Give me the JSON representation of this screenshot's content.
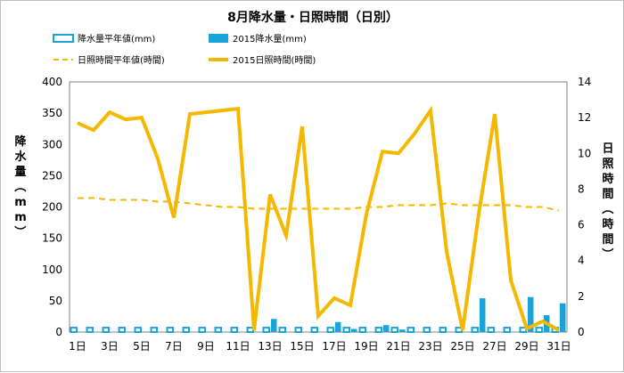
{
  "chart_data": {
    "type": "bar",
    "title": "8月降水量・日照時間（日別）",
    "categories": [
      "1日",
      "2日",
      "3日",
      "4日",
      "5日",
      "6日",
      "7日",
      "8日",
      "9日",
      "10日",
      "11日",
      "12日",
      "13日",
      "14日",
      "15日",
      "16日",
      "17日",
      "18日",
      "19日",
      "20日",
      "21日",
      "22日",
      "23日",
      "24日",
      "25日",
      "26日",
      "27日",
      "28日",
      "29日",
      "30日",
      "31日"
    ],
    "x_tick_labels": [
      "1日",
      "3日",
      "5日",
      "7日",
      "9日",
      "11日",
      "13日",
      "15日",
      "17日",
      "19日",
      "21日",
      "23日",
      "25日",
      "27日",
      "29日",
      "31日"
    ],
    "y_left": {
      "label": "降水量（mm）",
      "ylim": [
        0,
        400
      ],
      "ticks": [
        "0",
        "50",
        "100",
        "150",
        "200",
        "250",
        "300",
        "350",
        "400"
      ]
    },
    "y_right": {
      "label": "日照時間（時間）",
      "ylim": [
        0,
        14
      ],
      "ticks": [
        "0",
        "2",
        "4",
        "6",
        "8",
        "10",
        "12",
        "14"
      ]
    },
    "grid": false,
    "legend_position": "top",
    "series": [
      {
        "name": "降水量平年値(mm)",
        "kind": "bar-outline",
        "axis": "left",
        "color": "#1aa3d9",
        "values": [
          7,
          7,
          7,
          7,
          7,
          7,
          7,
          7,
          7,
          7,
          7,
          7,
          7,
          7,
          7,
          7,
          7,
          7,
          7,
          7,
          7,
          7,
          7,
          7,
          7,
          7,
          7,
          7,
          7,
          7,
          7
        ]
      },
      {
        "name": "2015降水量(mm)",
        "kind": "bar",
        "axis": "left",
        "color": "#1aa3d9",
        "values": [
          0,
          0,
          0,
          0,
          0,
          0,
          0,
          0,
          0,
          0,
          0,
          0,
          21,
          0,
          0,
          0,
          16,
          5,
          0,
          11,
          4,
          0,
          0,
          0,
          0,
          54,
          0,
          0,
          56,
          27,
          46
        ]
      },
      {
        "name": "日照時間平年値(時間)",
        "kind": "line-dashed",
        "axis": "right",
        "color": "#f5b800",
        "values": [
          7.5,
          7.5,
          7.4,
          7.4,
          7.4,
          7.3,
          7.3,
          7.2,
          7.1,
          7.0,
          7.0,
          6.9,
          6.9,
          6.9,
          6.9,
          6.9,
          6.9,
          6.9,
          7.0,
          7.0,
          7.1,
          7.1,
          7.1,
          7.2,
          7.1,
          7.1,
          7.1,
          7.1,
          7.0,
          7.0,
          6.8
        ]
      },
      {
        "name": "2015日照時間(時間)",
        "kind": "line",
        "axis": "right",
        "color": "#f5b800",
        "values": [
          11.7,
          11.3,
          12.3,
          11.9,
          12.0,
          9.7,
          6.4,
          12.2,
          12.3,
          12.4,
          12.5,
          0.1,
          7.7,
          5.4,
          11.5,
          0.9,
          1.9,
          1.5,
          6.6,
          10.1,
          10.0,
          11.1,
          12.4,
          4.5,
          0.1,
          6.6,
          12.2,
          2.9,
          0.2,
          0.6,
          0.1
        ]
      }
    ]
  }
}
